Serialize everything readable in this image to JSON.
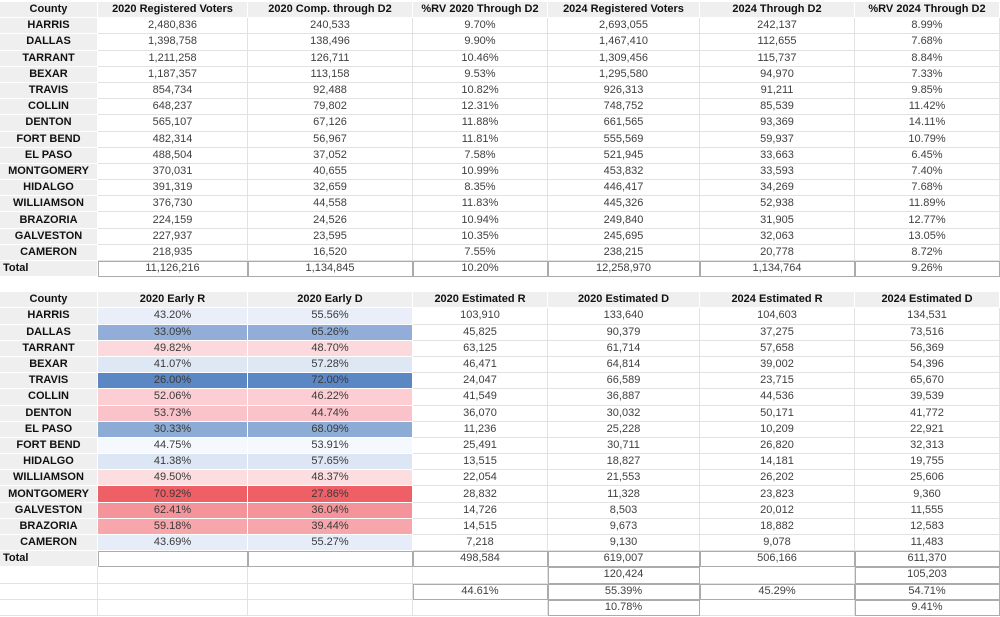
{
  "colors": {
    "header_bg": "#efefef",
    "gridline": "#e2e2e2",
    "box_border": "#ababab",
    "value_text": "#3f3f3f",
    "label_text": "#111111",
    "strong_blue": "#5b87c5",
    "strong_red": "#ef5f66"
  },
  "registration_table": {
    "headers": [
      "County",
      "2020 Registered Voters",
      "2020 Comp. through D2",
      "%RV 2020 Through D2",
      "2024 Registered Voters",
      "2024 Through D2",
      "%RV 2024 Through D2"
    ],
    "rows": [
      [
        "HARRIS",
        "2,480,836",
        "240,533",
        "9.70%",
        "2,693,055",
        "242,137",
        "8.99%"
      ],
      [
        "DALLAS",
        "1,398,758",
        "138,496",
        "9.90%",
        "1,467,410",
        "112,655",
        "7.68%"
      ],
      [
        "TARRANT",
        "1,211,258",
        "126,711",
        "10.46%",
        "1,309,456",
        "115,737",
        "8.84%"
      ],
      [
        "BEXAR",
        "1,187,357",
        "113,158",
        "9.53%",
        "1,295,580",
        "94,970",
        "7.33%"
      ],
      [
        "TRAVIS",
        "854,734",
        "92,488",
        "10.82%",
        "926,313",
        "91,211",
        "9.85%"
      ],
      [
        "COLLIN",
        "648,237",
        "79,802",
        "12.31%",
        "748,752",
        "85,539",
        "11.42%"
      ],
      [
        "DENTON",
        "565,107",
        "67,126",
        "11.88%",
        "661,565",
        "93,369",
        "14.11%"
      ],
      [
        "FORT BEND",
        "482,314",
        "56,967",
        "11.81%",
        "555,569",
        "59,937",
        "10.79%"
      ],
      [
        "EL PASO",
        "488,504",
        "37,052",
        "7.58%",
        "521,945",
        "33,663",
        "6.45%"
      ],
      [
        "MONTGOMERY",
        "370,031",
        "40,655",
        "10.99%",
        "453,832",
        "33,593",
        "7.40%"
      ],
      [
        "HIDALGO",
        "391,319",
        "32,659",
        "8.35%",
        "446,417",
        "34,269",
        "7.68%"
      ],
      [
        "WILLIAMSON",
        "376,730",
        "44,558",
        "11.83%",
        "445,326",
        "52,938",
        "11.89%"
      ],
      [
        "BRAZORIA",
        "224,159",
        "24,526",
        "10.94%",
        "249,840",
        "31,905",
        "12.77%"
      ],
      [
        "GALVESTON",
        "227,937",
        "23,595",
        "10.35%",
        "245,695",
        "32,063",
        "13.05%"
      ],
      [
        "CAMERON",
        "218,935",
        "16,520",
        "7.55%",
        "238,215",
        "20,778",
        "8.72%"
      ]
    ],
    "total": [
      "Total",
      "11,126,216",
      "1,134,845",
      "10.20%",
      "12,258,970",
      "1,134,764",
      "9.26%"
    ]
  },
  "early_vote_table": {
    "headers": [
      "County",
      "2020 Early R",
      "2020 Early D",
      "2020 Estimated R",
      "2020 Estimated D",
      "2024 Estimated R",
      "2024 Estimated D"
    ],
    "rows": [
      [
        "HARRIS",
        "43.20%",
        "55.56%",
        "103,910",
        "133,640",
        "104,603",
        "134,531"
      ],
      [
        "DALLAS",
        "33.09%",
        "65.26%",
        "45,825",
        "90,379",
        "37,275",
        "73,516"
      ],
      [
        "TARRANT",
        "49.82%",
        "48.70%",
        "63,125",
        "61,714",
        "57,658",
        "56,369"
      ],
      [
        "BEXAR",
        "41.07%",
        "57.28%",
        "46,471",
        "64,814",
        "39,002",
        "54,396"
      ],
      [
        "TRAVIS",
        "26.00%",
        "72.00%",
        "24,047",
        "66,589",
        "23,715",
        "65,670"
      ],
      [
        "COLLIN",
        "52.06%",
        "46.22%",
        "41,549",
        "36,887",
        "44,536",
        "39,539"
      ],
      [
        "DENTON",
        "53.73%",
        "44.74%",
        "36,070",
        "30,032",
        "50,171",
        "41,772"
      ],
      [
        "EL PASO",
        "30.33%",
        "68.09%",
        "11,236",
        "25,228",
        "10,209",
        "22,921"
      ],
      [
        "FORT BEND",
        "44.75%",
        "53.91%",
        "25,491",
        "30,711",
        "26,820",
        "32,313"
      ],
      [
        "HIDALGO",
        "41.38%",
        "57.65%",
        "13,515",
        "18,827",
        "14,181",
        "19,755"
      ],
      [
        "WILLIAMSON",
        "49.50%",
        "48.37%",
        "22,054",
        "21,553",
        "26,202",
        "25,606"
      ],
      [
        "MONTGOMERY",
        "70.92%",
        "27.86%",
        "28,832",
        "11,328",
        "23,823",
        "9,360"
      ],
      [
        "GALVESTON",
        "62.41%",
        "36.04%",
        "14,726",
        "8,503",
        "20,012",
        "11,555"
      ],
      [
        "BRAZORIA",
        "59.18%",
        "39.44%",
        "14,515",
        "9,673",
        "18,882",
        "12,583"
      ],
      [
        "CAMERON",
        "43.69%",
        "55.27%",
        "7,218",
        "9,130",
        "9,078",
        "11,483"
      ]
    ],
    "row_colors": [
      "#e9eef8",
      "#92aed8",
      "#fcd9dd",
      "#dee8f5",
      "#5b87c5",
      "#fcced3",
      "#fac3c9",
      "#8cacd6",
      "#f5f8fd",
      "#dce6f4",
      "#fcdee1",
      "#ef5f66",
      "#f4949a",
      "#f7a6ab",
      "#e6ecf8"
    ],
    "total": [
      "Total",
      "",
      "",
      "498,584",
      "619,007",
      "506,166",
      "611,370"
    ],
    "footer_rows": [
      [
        "",
        "",
        "",
        "",
        "120,424",
        "",
        "105,203"
      ],
      [
        "",
        "",
        "",
        "44.61%",
        "55.39%",
        "45.29%",
        "54.71%"
      ],
      [
        "",
        "",
        "",
        "",
        "10.78%",
        "",
        "9.41%"
      ]
    ]
  }
}
